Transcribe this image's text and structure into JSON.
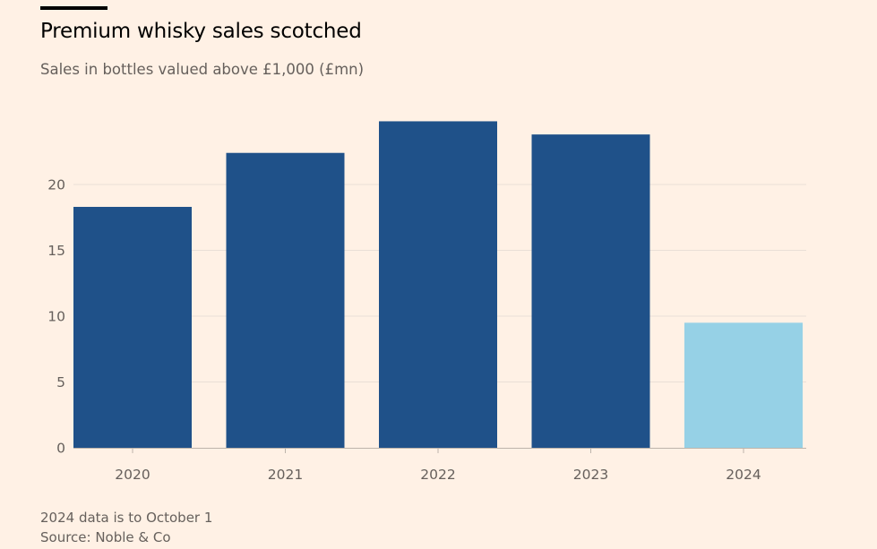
{
  "title": "Premium whisky sales scotched",
  "subtitle": "Sales in bottles valued above £1,000 (£mn)",
  "notes": [
    "2024 data is to October 1",
    "Source: Noble & Co"
  ],
  "colors": {
    "background": "#fff1e5",
    "bar_primary": "#1f5189",
    "bar_highlight": "#96d1e6",
    "gridline": "#e9dfd6",
    "axis_text": "#66605c"
  },
  "chart_data": {
    "type": "bar",
    "title": "Premium whisky sales scotched",
    "subtitle": "Sales in bottles valued above £1,000 (£mn)",
    "xlabel": "",
    "ylabel": "",
    "categories": [
      "2020",
      "2021",
      "2022",
      "2023",
      "2024"
    ],
    "values": [
      18.3,
      22.4,
      24.8,
      23.8,
      9.5
    ],
    "highlight": [
      false,
      false,
      false,
      false,
      true
    ],
    "ylim": [
      0,
      25
    ],
    "yticks": [
      0,
      5,
      10,
      15,
      20
    ],
    "grid": true,
    "legend": "none"
  }
}
